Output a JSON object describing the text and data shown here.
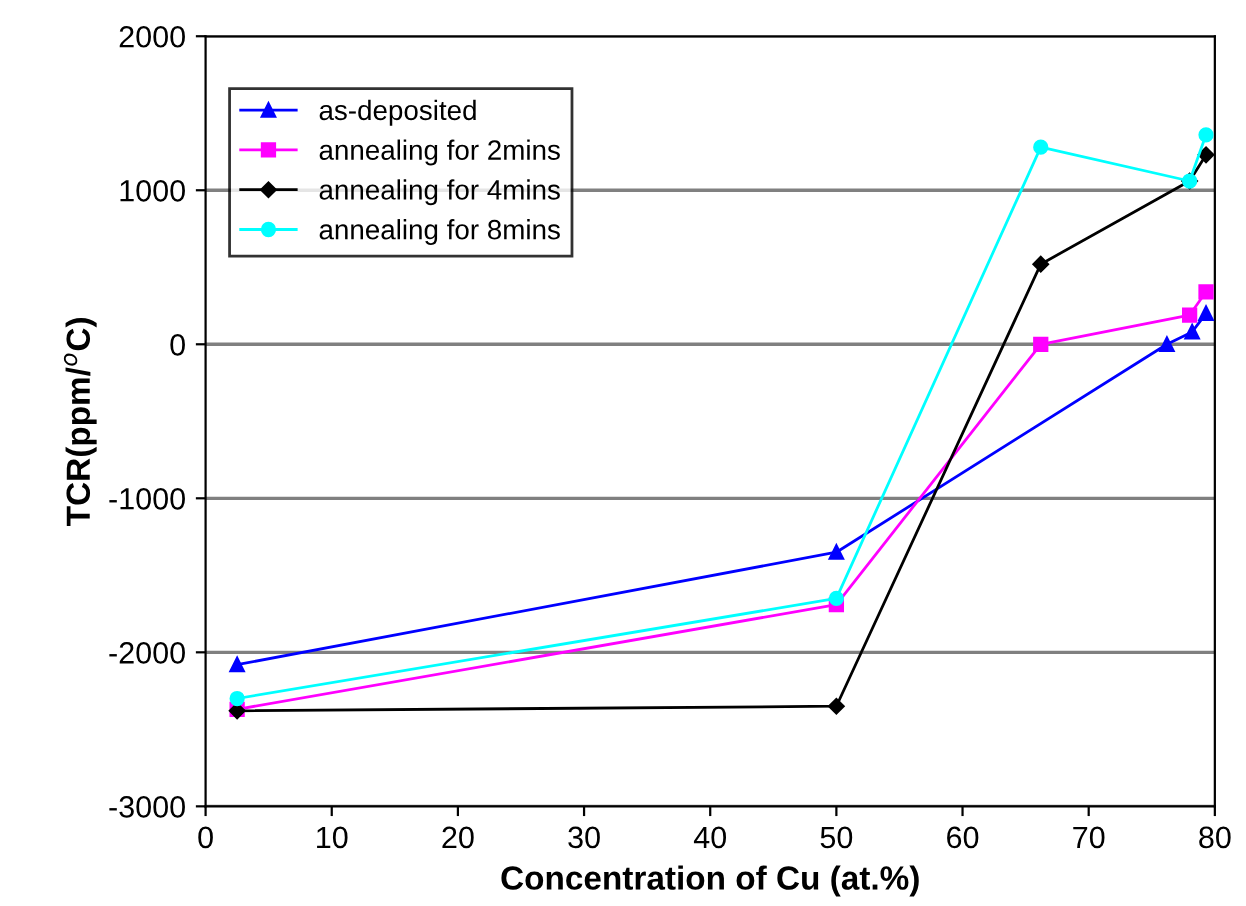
{
  "chart_data": {
    "type": "line",
    "xlabel": "Concentration of Cu (at.%)",
    "ylabel": "TCR(ppm/$^{o}$C)",
    "xlim": [
      0,
      80
    ],
    "xticks": [
      0,
      10,
      20,
      30,
      40,
      50,
      60,
      70,
      80
    ],
    "ylim": [
      -3000,
      2000
    ],
    "yticks": [
      -3000,
      -2000,
      -1000,
      0,
      1000,
      2000
    ],
    "grid": "y",
    "legend": "top left",
    "series": [
      {
        "name": "as-deposited",
        "color": "#0000ff",
        "marker": "triangle",
        "x": [
          2.5,
          50,
          76.2,
          78.2,
          79.3
        ],
        "values": [
          -2080,
          -1350,
          0,
          80,
          200
        ]
      },
      {
        "name": "annealing for 2mins",
        "color": "#ff00ff",
        "marker": "square",
        "x": [
          2.5,
          50,
          66.2,
          78,
          79.3
        ],
        "values": [
          -2370,
          -1690,
          0,
          190,
          340
        ]
      },
      {
        "name": "annealing for 4mins",
        "color": "#000000",
        "marker": "diamond",
        "x": [
          2.5,
          50,
          66.2,
          78,
          79.3
        ],
        "values": [
          -2380,
          -2350,
          520,
          1060,
          1230
        ]
      },
      {
        "name": "annealing for 8mins",
        "color": "#00ffff",
        "marker": "circle",
        "x": [
          2.5,
          50,
          66.2,
          78,
          79.3
        ],
        "values": [
          -2300,
          -1650,
          1280,
          1060,
          1360
        ]
      }
    ]
  }
}
